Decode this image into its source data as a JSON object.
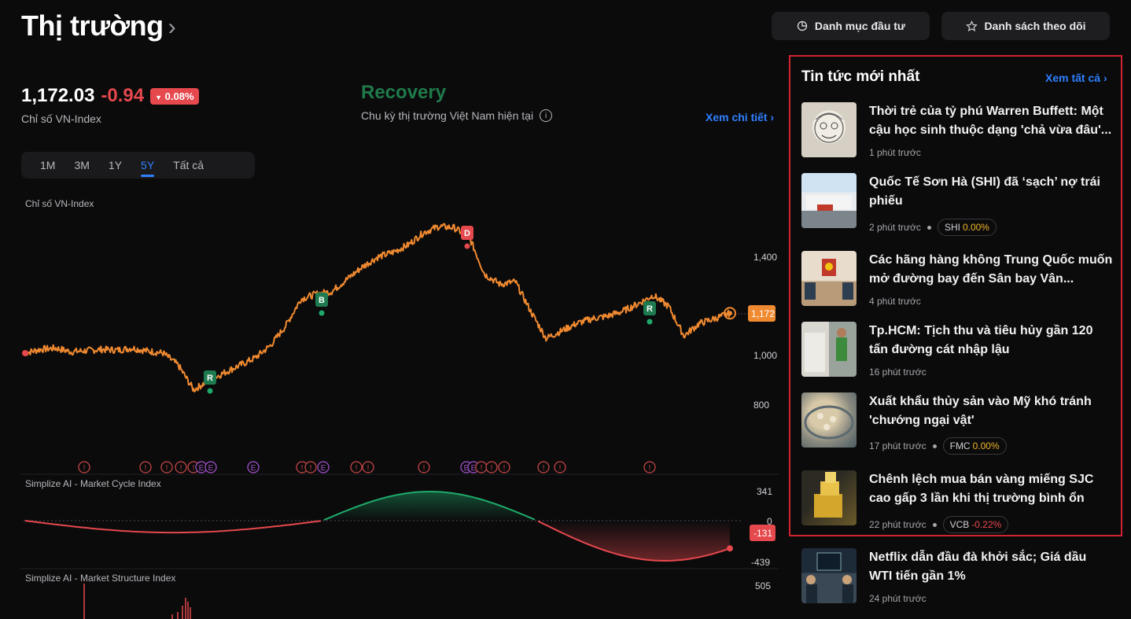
{
  "header": {
    "title": "Thị trường",
    "portfolio_label": "Danh mục đầu tư",
    "watchlist_label": "Danh sách theo dõi"
  },
  "index": {
    "value": "1,172.03",
    "change": "-0.94",
    "percent": "0.08%",
    "name": "Chỉ số VN-Index"
  },
  "cycle": {
    "phase": "Recovery",
    "subtitle": "Chu kỳ thị trường Việt Nam hiện tại",
    "detail_link": "Xem chi tiết"
  },
  "range_tabs": [
    "1M",
    "3M",
    "1Y",
    "5Y",
    "Tất cả"
  ],
  "active_tab": "5Y",
  "colors": {
    "accent": "#2f80ff",
    "price_line": "#f08a30",
    "negative": "#e5484d",
    "positive": "#1faa6b",
    "phase_green": "#1f7a4a"
  },
  "chart_data": [
    {
      "type": "line",
      "title": "Chỉ số VN-Index",
      "yticks": [
        "1,400",
        "1,000",
        "800"
      ],
      "current_label": "1,172",
      "signals": [
        "R",
        "B",
        "D",
        "R"
      ],
      "event_markers": [
        "!",
        "!",
        "!",
        "!",
        "!",
        "E",
        "E",
        "E",
        "!",
        "!",
        "E",
        "!",
        "!",
        "!",
        "E",
        "E",
        "!",
        "!",
        "!",
        "!",
        "!",
        "!",
        "E"
      ],
      "approx_path": [
        1010,
        1025,
        1030,
        1015,
        1020,
        1025,
        1022,
        1030,
        1018,
        1010,
        960,
        860,
        900,
        930,
        960,
        990,
        1040,
        1120,
        1230,
        1250,
        1260,
        1310,
        1360,
        1400,
        1420,
        1450,
        1500,
        1525,
        1520,
        1480,
        1330,
        1290,
        1300,
        1180,
        1070,
        1100,
        1130,
        1150,
        1160,
        1180,
        1210,
        1245,
        1200,
        1080,
        1130,
        1150,
        1172
      ]
    },
    {
      "type": "area",
      "title": "Simplize AI - Market Cycle Index",
      "yticks": [
        "341",
        "0",
        "-439"
      ],
      "current_label": "-131",
      "ylim": [
        -439,
        341
      ]
    },
    {
      "type": "bar",
      "title": "Simplize AI - Market Structure Index",
      "yticks": [
        "505"
      ]
    }
  ],
  "news": {
    "heading": "Tin tức mới nhất",
    "see_all": "Xem tất cả",
    "items": [
      {
        "title": "Thời trẻ của tỷ phú Warren Buffett: Một cậu học sinh thuộc dạng 'chả vừa đâu'...",
        "time": "1 phút trước",
        "ticker": "",
        "change": ""
      },
      {
        "title": "Quốc Tế Sơn Hà (SHI) đã ‘sạch’ nợ trái phiếu",
        "time": "2 phút trước",
        "ticker": "SHI",
        "change": "0.00%"
      },
      {
        "title": "Các hãng hàng không Trung Quốc muốn mở đường bay đến Sân bay Vân...",
        "time": "4 phút trước",
        "ticker": "",
        "change": ""
      },
      {
        "title": "Tp.HCM: Tịch thu và tiêu hủy gần 120 tấn đường cát nhập lậu",
        "time": "16 phút trước",
        "ticker": "",
        "change": ""
      },
      {
        "title": "Xuất khẩu thủy sản vào Mỹ khó tránh 'chướng ngại vật'",
        "time": "17 phút trước",
        "ticker": "FMC",
        "change": "0.00%"
      },
      {
        "title": "Chênh lệch mua bán vàng miếng SJC cao gấp 3 lần khi thị trường bình ổn",
        "time": "22 phút trước",
        "ticker": "VCB",
        "change": "-0.22%"
      },
      {
        "title": "Netflix dẫn đầu đà khởi sắc; Giá dầu WTI tiến gần 1%",
        "time": "24 phút trước",
        "ticker": "",
        "change": ""
      }
    ]
  }
}
